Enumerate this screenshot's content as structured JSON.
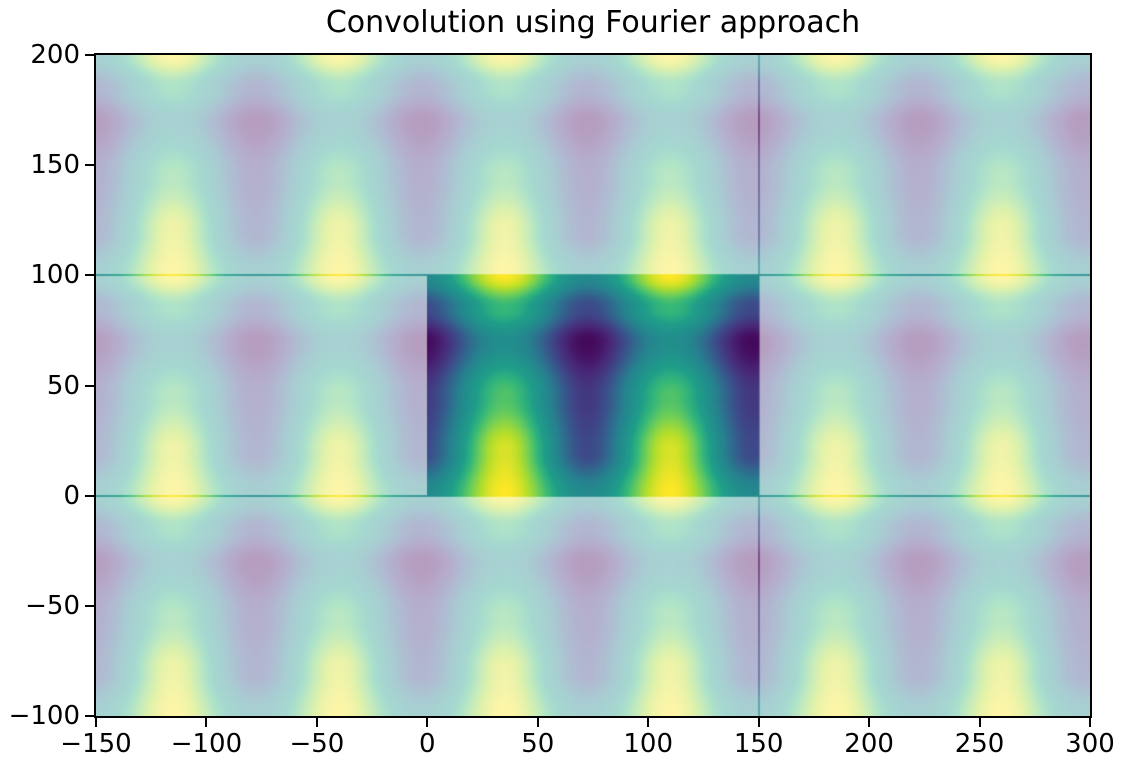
{
  "figure": {
    "title": "Convolution using Fourier approach",
    "background_color": "#ffffff",
    "spine_color": "#000000",
    "tick_color": "#000000",
    "text_color": "#000000"
  },
  "chart_data": {
    "type": "heatmap",
    "title": "Convolution using Fourier approach",
    "xlabel": "",
    "ylabel": "",
    "xlim": [
      -150,
      300
    ],
    "ylim": [
      -100,
      200
    ],
    "x_ticks": [
      -150,
      -100,
      -50,
      0,
      50,
      100,
      150,
      200,
      250,
      300
    ],
    "y_ticks": [
      -100,
      -50,
      0,
      50,
      100,
      150,
      200
    ],
    "x_tick_labels": [
      "−150",
      "−100",
      "−50",
      "0",
      "50",
      "100",
      "150",
      "200",
      "250",
      "300"
    ],
    "y_tick_labels": [
      "−100",
      "−50",
      "0",
      "50",
      "100",
      "150",
      "200"
    ],
    "grid": false,
    "legend": null,
    "colormap": "viridis",
    "colormap_stops": [
      "#440154",
      "#482878",
      "#3e4989",
      "#31688e",
      "#26828e",
      "#21918c",
      "#1f9e89",
      "#35b779",
      "#6ece58",
      "#b5de2b",
      "#fde725"
    ],
    "main_image_extent": {
      "x0": 0,
      "x1": 150,
      "y0": 0,
      "y1": 100
    },
    "main_image_alpha": 1.0,
    "tiled_background_alpha": 0.4,
    "pattern": {
      "description": "periodic convolution result: bright vertical columns pinched at a dark waist, tiled across the axes",
      "x_period": 75,
      "x_peak_center": 35,
      "y_period": 100,
      "profile_y_keypoints": [
        0,
        20,
        45,
        70,
        85,
        100
      ],
      "profile_peak_values": [
        1.0,
        0.95,
        0.75,
        0.48,
        0.7,
        1.0
      ],
      "profile_trough_values": [
        0.45,
        0.2,
        0.15,
        0.02,
        0.2,
        0.45
      ]
    },
    "tile_seams": {
      "horizontal_y": [
        0,
        100
      ],
      "vertical_x": [
        150
      ],
      "horizontal_alpha": 0.8,
      "vertical_alpha": 0.55
    }
  }
}
